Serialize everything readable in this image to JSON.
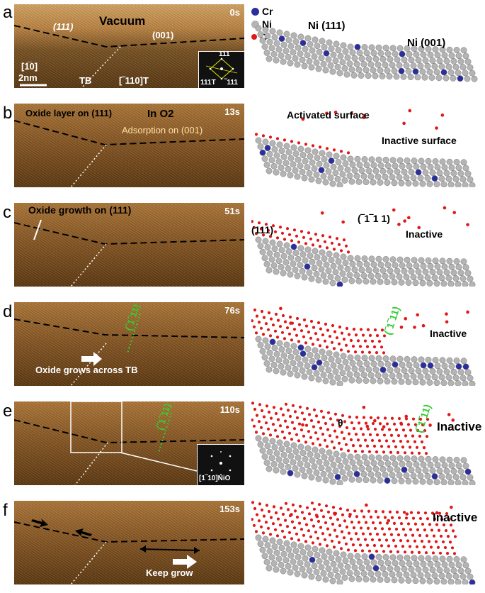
{
  "legend": [
    {
      "symbol": "Cr",
      "color": "#2b2f9e"
    },
    {
      "symbol": "Ni",
      "color": "#b4b4b4"
    },
    {
      "symbol": "O",
      "color": "#e01818"
    }
  ],
  "colors": {
    "cr": "#2b2f9e",
    "ni": "#b4b4b4",
    "o": "#e01818",
    "twin_plane": "#33cc33"
  },
  "panels": [
    {
      "letter": "a",
      "time": "0s",
      "tem_labels": [
        "Vacuum",
        "(111)",
        "(001)",
        "[1̅0]",
        "TB",
        "[‾110]T",
        "2nm"
      ],
      "fft_labels": [
        "111",
        "111T",
        "‾111"
      ],
      "model_labels": [
        "Ni (111)",
        "Ni (001)"
      ]
    },
    {
      "letter": "b",
      "time": "13s",
      "tem_labels": [
        "Oxide layer on (111)",
        "In O2",
        "Adsorption on (001)"
      ],
      "model_labels": [
        "Activated surface",
        "Inactive surface"
      ]
    },
    {
      "letter": "c",
      "time": "51s",
      "tem_labels": [
        "Oxide growth on (111)"
      ],
      "model_labels": [
        "(111)",
        "(‾1‾1 1)",
        "Inactive"
      ]
    },
    {
      "letter": "d",
      "time": "76s",
      "tem_labels": [
        "(‾1‾11)",
        "Oxide grows across TB"
      ],
      "model_labels": [
        "(‾1‾11)",
        "Inactive"
      ]
    },
    {
      "letter": "e",
      "time": "110s",
      "tem_labels": [
        "(‾1‾11)"
      ],
      "fft_labels": [
        "[1‾10]NiO"
      ],
      "model_labels": [
        "θ",
        "(‾1‾11)",
        "Inactive"
      ]
    },
    {
      "letter": "f",
      "time": "153s",
      "tem_labels": [
        "Keep grow"
      ],
      "model_labels": [
        "Inactive"
      ]
    }
  ]
}
